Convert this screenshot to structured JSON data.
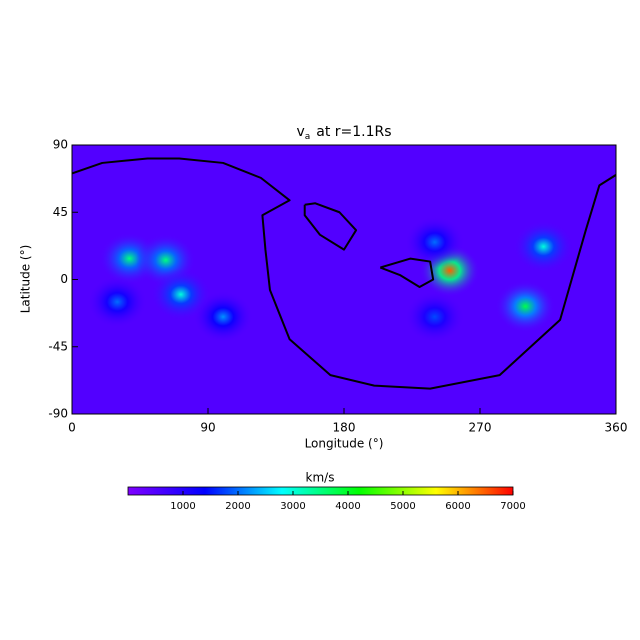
{
  "chart_data": {
    "type": "heatmap",
    "title": {
      "main": "v",
      "sub": "a",
      "rest": "at r=1.1Rs"
    },
    "x_label": "Longitude (°)",
    "y_label": "Latitude (°)",
    "xlim": [
      0,
      360
    ],
    "xticks": [
      0,
      90,
      180,
      270,
      360
    ],
    "ylim": [
      -90,
      90
    ],
    "yticks": [
      -90,
      -45,
      0,
      45,
      90
    ],
    "background_value": 500,
    "hotspots": [
      {
        "lon": 38,
        "lat": 14,
        "value": 3500
      },
      {
        "lon": 62,
        "lat": 13,
        "value": 3500
      },
      {
        "lon": 72,
        "lat": -10,
        "value": 3000
      },
      {
        "lon": 30,
        "lat": -15,
        "value": 2000
      },
      {
        "lon": 100,
        "lat": -25,
        "value": 2200
      },
      {
        "lon": 250,
        "lat": 6,
        "value": 6500
      },
      {
        "lon": 300,
        "lat": -18,
        "value": 3800
      },
      {
        "lon": 312,
        "lat": 22,
        "value": 3000
      },
      {
        "lon": 240,
        "lat": 25,
        "value": 2000
      },
      {
        "lon": 240,
        "lat": -25,
        "value": 1800
      }
    ],
    "contours": [
      {
        "lon": [
          0,
          20,
          50,
          71,
          100,
          125,
          144,
          126,
          128,
          131,
          144,
          171,
          200,
          237,
          283,
          323,
          340,
          349,
          360
        ],
        "lat": [
          71,
          78,
          81,
          81,
          78,
          68,
          53,
          43,
          20,
          -7,
          -40,
          -64,
          -71,
          -73,
          -64,
          -27,
          33,
          63,
          70
        ]
      },
      {
        "lon": [
          154,
          161,
          177,
          188,
          180,
          164,
          154,
          154
        ],
        "lat": [
          50,
          51,
          45,
          33,
          20,
          30,
          43,
          50
        ]
      },
      {
        "lon": [
          204,
          224,
          237,
          239,
          230,
          217,
          204
        ],
        "lat": [
          8,
          14,
          12,
          0,
          -5,
          3,
          8
        ]
      }
    ],
    "contour_color": "#000000",
    "colorbar": {
      "label": "km/s",
      "clim": [
        0,
        7000
      ],
      "ticks": [
        1000,
        2000,
        3000,
        4000,
        5000,
        6000,
        7000
      ],
      "colors": [
        "#7f00ff",
        "#0000ff",
        "#00ffff",
        "#00ff00",
        "#ffff00",
        "#ff0000"
      ]
    }
  }
}
